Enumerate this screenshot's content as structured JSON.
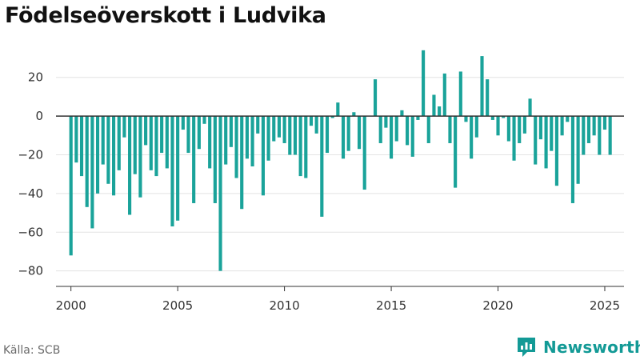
{
  "page": {
    "title": "Födelseöverskott i Ludvika",
    "source": "Källa: SCB",
    "brand": "Newsworthy"
  },
  "colors": {
    "bar": "#1aa39a",
    "zero_line": "#333333",
    "grid": "#e3e3e3",
    "axis": "#333333",
    "brand": "#139a96"
  },
  "chart_data": {
    "type": "bar",
    "title": "Födelseöverskott i Ludvika",
    "xlabel": "",
    "ylabel": "",
    "x_start_year": 2000,
    "period": "quarterly",
    "xlim": [
      1999.3,
      2025.9
    ],
    "ylim": [
      -88,
      36
    ],
    "y_ticks": [
      20,
      0,
      -20,
      -40,
      -60,
      -80
    ],
    "y_tick_labels": [
      "20",
      "0",
      "−20",
      "−40",
      "−60",
      "−80"
    ],
    "x_ticks": [
      2000,
      2005,
      2010,
      2015,
      2020,
      2025
    ],
    "x_tick_labels": [
      "2000",
      "2005",
      "2010",
      "2015",
      "2020",
      "2025"
    ],
    "grid": "horizontal",
    "values": [
      -72,
      -24,
      -31,
      -47,
      -58,
      -40,
      -25,
      -35,
      -41,
      -28,
      -11,
      -51,
      -30,
      -42,
      -15,
      -28,
      -31,
      -19,
      -27,
      -57,
      -54,
      -7,
      -19,
      -45,
      -17,
      -4,
      -27,
      -45,
      -80,
      -25,
      -16,
      -32,
      -48,
      -22,
      -26,
      -9,
      -41,
      -23,
      -13,
      -11,
      -14,
      -20,
      -20,
      -31,
      -32,
      -5,
      -9,
      -52,
      -19,
      -1,
      7,
      -22,
      -18,
      2,
      -17,
      -38,
      0,
      19,
      -14,
      -6,
      -22,
      -13,
      3,
      -15,
      -21,
      -2,
      34,
      -14,
      11,
      5,
      22,
      -14,
      -37,
      23,
      -3,
      -22,
      -11,
      31,
      19,
      -2,
      -10,
      -1,
      -13,
      -23,
      -14,
      -9,
      9,
      -25,
      -12,
      -27,
      -18,
      -36,
      -10,
      -3,
      -45,
      -35,
      -20,
      -14,
      -10,
      -20,
      -7,
      -20
    ]
  }
}
